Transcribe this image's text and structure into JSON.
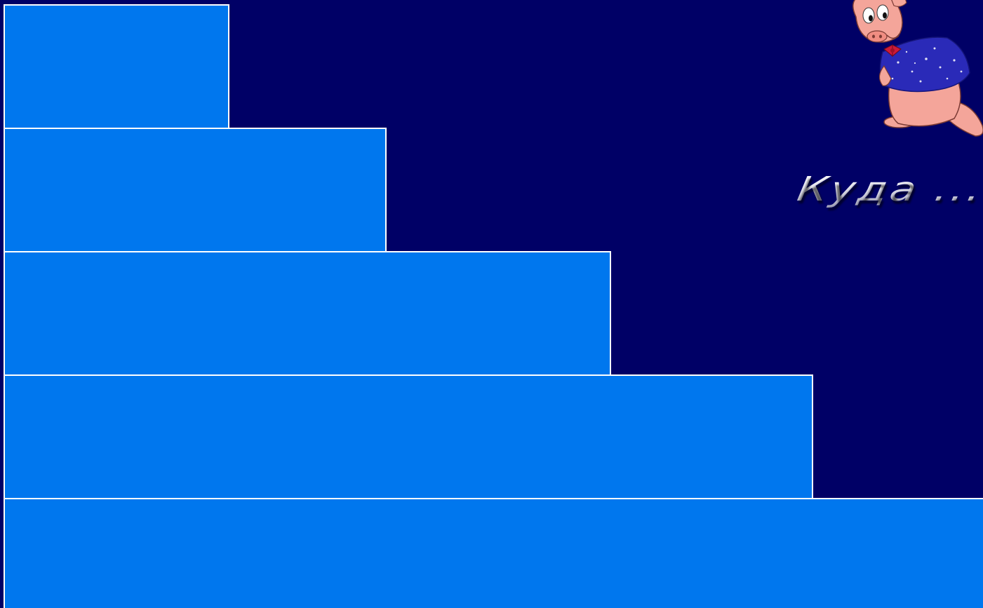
{
  "slide": {
    "title": "Куда ..."
  },
  "steps": [
    {
      "id": 1,
      "label": ""
    },
    {
      "id": 2,
      "label": ""
    },
    {
      "id": 3,
      "label": ""
    },
    {
      "id": 4,
      "label": ""
    },
    {
      "id": 5,
      "label": ""
    }
  ],
  "colors": {
    "background": "#000066",
    "step_fill": "#0077ee",
    "step_border": "#ffffff",
    "pig_skin": "#f4a59a",
    "jacket": "#2a2ab8",
    "bowtie": "#cc1a3a"
  },
  "icons": {
    "mascot": "cartoon-pig-icon"
  }
}
